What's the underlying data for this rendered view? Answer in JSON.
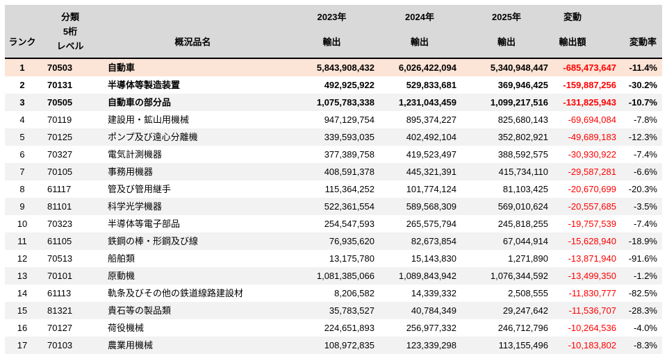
{
  "colors": {
    "header_bg": "#D9D9D9",
    "header_border": "#000000",
    "highlight_bg": "#FCE4D6",
    "stripe_bg": "#F2F2F2",
    "change_text": "#FF0000"
  },
  "table": {
    "header": {
      "rank": "ランク",
      "code_lines": [
        "分類",
        "5桁",
        "レベル"
      ],
      "name": "概況品名",
      "y2023_lines": [
        "2023年",
        "輸出"
      ],
      "y2024_lines": [
        "2024年",
        "輸出"
      ],
      "y2025_lines": [
        "2025年",
        "輸出"
      ],
      "change_lines": [
        "変動",
        "輸出額"
      ],
      "rate": "変動率"
    },
    "rows": [
      {
        "rank": "1",
        "code": "70503",
        "name": "自動車",
        "y2023": "5,843,908,432",
        "y2024": "6,026,422,094",
        "y2025": "5,340,948,447",
        "change": "-685,473,647",
        "rate": "-11.4%",
        "bold": true,
        "highlight": true
      },
      {
        "rank": "2",
        "code": "70131",
        "name": "半導体等製造装置",
        "y2023": "492,925,922",
        "y2024": "529,833,681",
        "y2025": "369,946,425",
        "change": "-159,887,256",
        "rate": "-30.2%",
        "bold": true,
        "highlight": false
      },
      {
        "rank": "3",
        "code": "70505",
        "name": "自動車の部分品",
        "y2023": "1,075,783,338",
        "y2024": "1,231,043,459",
        "y2025": "1,099,217,516",
        "change": "-131,825,943",
        "rate": "-10.7%",
        "bold": true,
        "highlight": false
      },
      {
        "rank": "4",
        "code": "70119",
        "name": "建設用・鉱山用機械",
        "y2023": "947,129,754",
        "y2024": "895,374,227",
        "y2025": "825,680,143",
        "change": "-69,694,084",
        "rate": "-7.8%",
        "bold": false,
        "highlight": false
      },
      {
        "rank": "5",
        "code": "70125",
        "name": "ポンプ及び遠心分離機",
        "y2023": "339,593,035",
        "y2024": "402,492,104",
        "y2025": "352,802,921",
        "change": "-49,689,183",
        "rate": "-12.3%",
        "bold": false,
        "highlight": false
      },
      {
        "rank": "6",
        "code": "70327",
        "name": "電気計測機器",
        "y2023": "377,389,758",
        "y2024": "419,523,497",
        "y2025": "388,592,575",
        "change": "-30,930,922",
        "rate": "-7.4%",
        "bold": false,
        "highlight": false
      },
      {
        "rank": "7",
        "code": "70105",
        "name": "事務用機器",
        "y2023": "408,591,378",
        "y2024": "445,321,391",
        "y2025": "415,734,110",
        "change": "-29,587,281",
        "rate": "-6.6%",
        "bold": false,
        "highlight": false
      },
      {
        "rank": "8",
        "code": "61117",
        "name": "管及び管用継手",
        "y2023": "115,364,252",
        "y2024": "101,774,124",
        "y2025": "81,103,425",
        "change": "-20,670,699",
        "rate": "-20.3%",
        "bold": false,
        "highlight": false
      },
      {
        "rank": "9",
        "code": "81101",
        "name": "科学光学機器",
        "y2023": "522,361,554",
        "y2024": "589,568,309",
        "y2025": "569,010,624",
        "change": "-20,557,685",
        "rate": "-3.5%",
        "bold": false,
        "highlight": false
      },
      {
        "rank": "10",
        "code": "70323",
        "name": "半導体等電子部品",
        "y2023": "254,547,593",
        "y2024": "265,575,794",
        "y2025": "245,818,255",
        "change": "-19,757,539",
        "rate": "-7.4%",
        "bold": false,
        "highlight": false
      },
      {
        "rank": "11",
        "code": "61105",
        "name": "鉄鋼の棒・形鋼及び線",
        "y2023": "76,935,620",
        "y2024": "82,673,854",
        "y2025": "67,044,914",
        "change": "-15,628,940",
        "rate": "-18.9%",
        "bold": false,
        "highlight": false
      },
      {
        "rank": "12",
        "code": "70513",
        "name": "船舶類",
        "y2023": "13,175,780",
        "y2024": "15,143,830",
        "y2025": "1,271,890",
        "change": "-13,871,940",
        "rate": "-91.6%",
        "bold": false,
        "highlight": false
      },
      {
        "rank": "13",
        "code": "70101",
        "name": "原動機",
        "y2023": "1,081,385,066",
        "y2024": "1,089,843,942",
        "y2025": "1,076,344,592",
        "change": "-13,499,350",
        "rate": "-1.2%",
        "bold": false,
        "highlight": false
      },
      {
        "rank": "14",
        "code": "61113",
        "name": "軌条及びその他の鉄道線路建設材",
        "y2023": "8,206,582",
        "y2024": "14,339,332",
        "y2025": "2,508,555",
        "change": "-11,830,777",
        "rate": "-82.5%",
        "bold": false,
        "highlight": false
      },
      {
        "rank": "15",
        "code": "81321",
        "name": "貴石等の製品類",
        "y2023": "35,783,527",
        "y2024": "40,784,349",
        "y2025": "29,247,642",
        "change": "-11,536,707",
        "rate": "-28.3%",
        "bold": false,
        "highlight": false
      },
      {
        "rank": "16",
        "code": "70127",
        "name": "荷役機械",
        "y2023": "224,651,893",
        "y2024": "256,977,332",
        "y2025": "246,712,796",
        "change": "-10,264,536",
        "rate": "-4.0%",
        "bold": false,
        "highlight": false
      },
      {
        "rank": "17",
        "code": "70103",
        "name": "農業用機械",
        "y2023": "108,972,835",
        "y2024": "123,339,298",
        "y2025": "113,155,496",
        "change": "-10,183,802",
        "rate": "-8.3%",
        "bold": false,
        "highlight": false
      }
    ]
  }
}
